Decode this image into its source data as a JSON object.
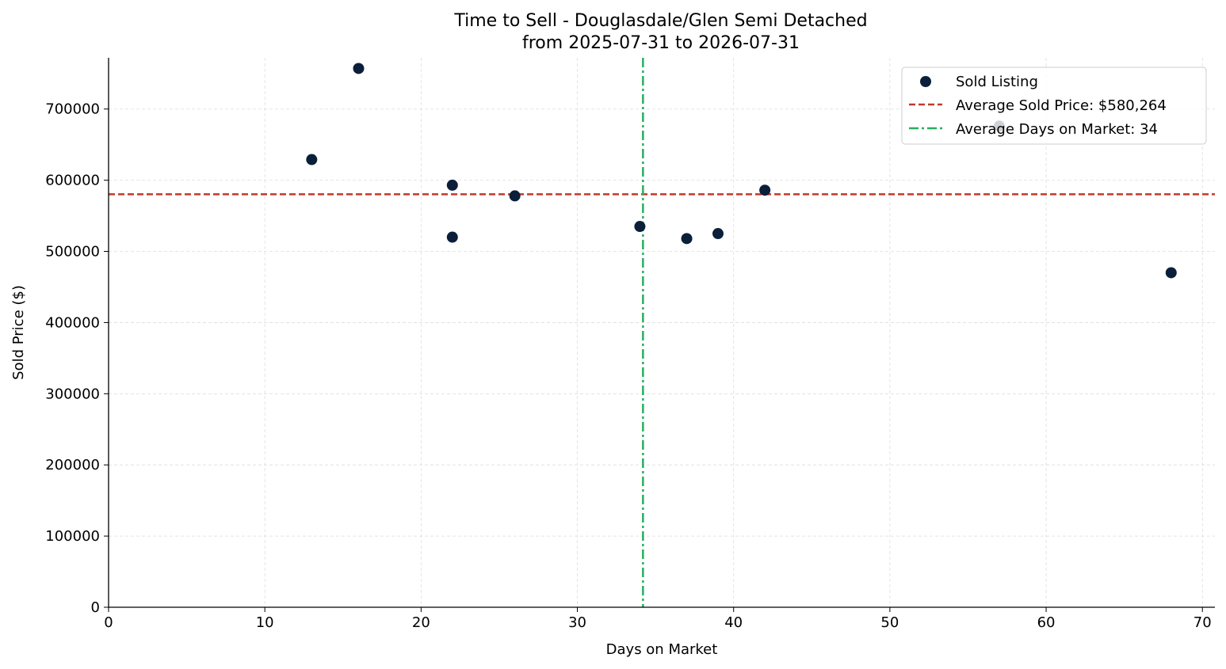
{
  "chart_data": {
    "type": "scatter",
    "title": "Time to Sell - Douglasdale/Glen Semi Detached",
    "subtitle": "from 2025-07-31 to 2026-07-31",
    "xlabel": "Days on Market",
    "ylabel": "Sold Price ($)",
    "xlim": [
      0,
      70.8
    ],
    "ylim": [
      0,
      772000
    ],
    "xticks": [
      0,
      10,
      20,
      30,
      40,
      50,
      60,
      70
    ],
    "yticks": [
      0,
      100000,
      200000,
      300000,
      400000,
      500000,
      600000,
      700000
    ],
    "x_tick_labels": [
      "0",
      "10",
      "20",
      "30",
      "40",
      "50",
      "60",
      "70"
    ],
    "y_tick_labels": [
      "0",
      "100000",
      "200000",
      "300000",
      "400000",
      "500000",
      "600000",
      "700000"
    ],
    "grid": true,
    "legend_position": "top-right",
    "series": [
      {
        "name": "Sold Listing",
        "color": "#0b1f3a",
        "points": [
          {
            "x": 13,
            "y": 629000
          },
          {
            "x": 16,
            "y": 757000
          },
          {
            "x": 22,
            "y": 593000
          },
          {
            "x": 22,
            "y": 520000
          },
          {
            "x": 26,
            "y": 578000
          },
          {
            "x": 34,
            "y": 535000
          },
          {
            "x": 37,
            "y": 518000
          },
          {
            "x": 39,
            "y": 525000
          },
          {
            "x": 42,
            "y": 586000
          },
          {
            "x": 57,
            "y": 676000
          },
          {
            "x": 68,
            "y": 470000
          }
        ]
      }
    ],
    "reference_lines": [
      {
        "name": "Average Sold Price: $580,264",
        "orientation": "horizontal",
        "value": 580264,
        "color": "#c0392b",
        "style": "dashed"
      },
      {
        "name": "Average Days on Market: 34",
        "orientation": "vertical",
        "value": 34.2,
        "color": "#27ae60",
        "style": "dashdot"
      }
    ]
  }
}
